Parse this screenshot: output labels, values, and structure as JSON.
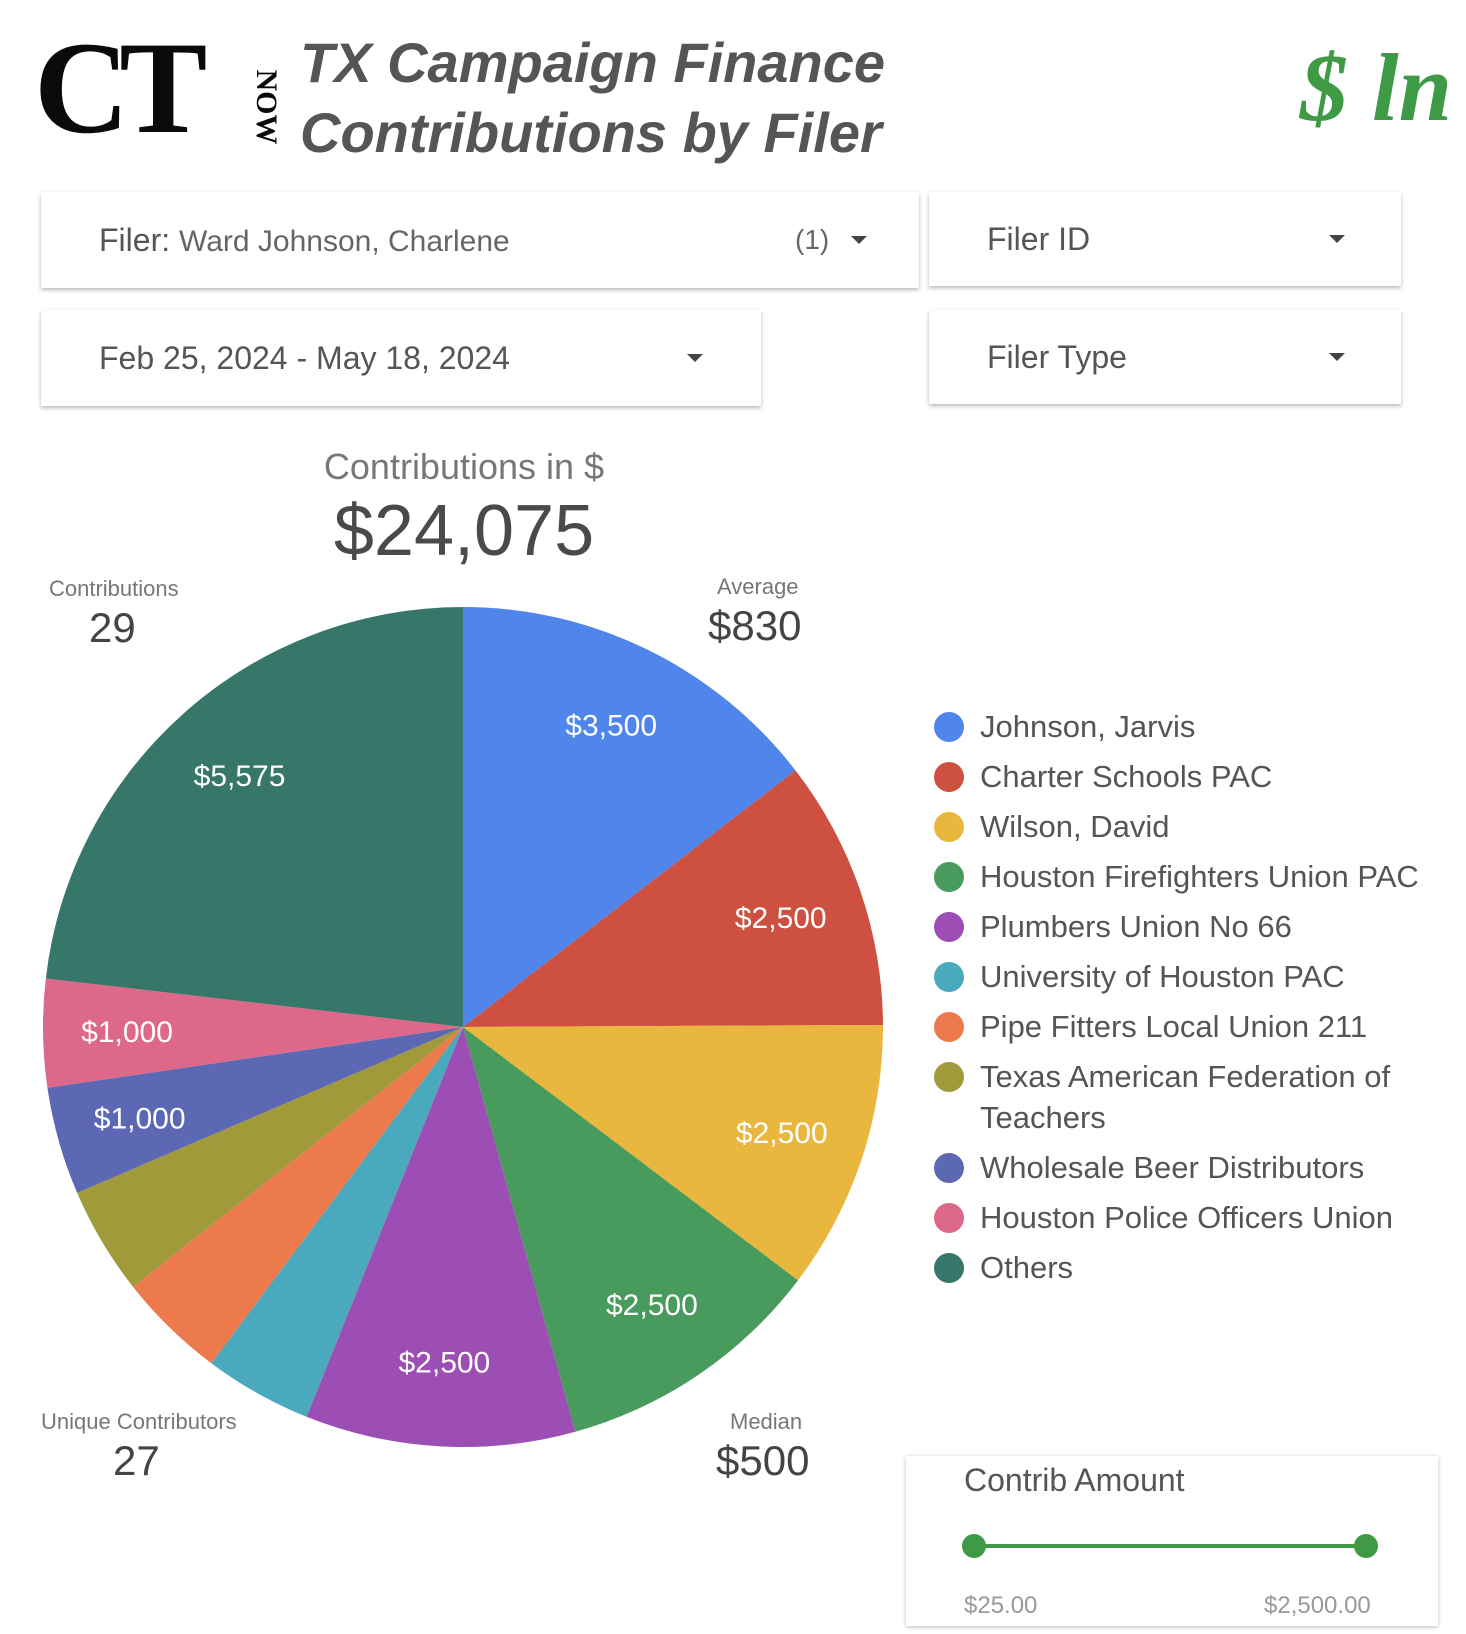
{
  "header": {
    "logo_text": "CT",
    "logo_sub": "NOW",
    "title": "TX Campaign Finance Contributions by Filer",
    "brand_mark": "$ ln"
  },
  "filters": {
    "filer": {
      "label": "Filer",
      "value": "Ward Johnson, Charlene",
      "count": "(1)"
    },
    "filer_id": {
      "label": "Filer ID"
    },
    "date_range": {
      "label": "Feb 25, 2024 - May 18, 2024"
    },
    "filer_type": {
      "label": "Filer Type"
    }
  },
  "scorecards": {
    "total": {
      "label": "Contributions in $",
      "value": "$24,075"
    },
    "contributions": {
      "label": "Contributions",
      "value": "29"
    },
    "average": {
      "label": "Average",
      "value": "$830"
    },
    "unique": {
      "label": "Unique Contributors",
      "value": "27"
    },
    "median": {
      "label": "Median",
      "value": "$500"
    }
  },
  "chart_data": {
    "type": "pie",
    "slices": [
      {
        "name": "Johnson, Jarvis",
        "value": 3500,
        "label": "$3,500",
        "color": "#5085ec"
      },
      {
        "name": "Charter Schools PAC",
        "value": 2500,
        "label": "$2,500",
        "color": "#cd5040"
      },
      {
        "name": "Wilson, David",
        "value": 2500,
        "label": "$2,500",
        "color": "#e9b73e"
      },
      {
        "name": "Houston Firefighters Union PAC",
        "value": 2500,
        "label": "$2,500",
        "color": "#489b5c"
      },
      {
        "name": "Plumbers Union No 66",
        "value": 2500,
        "label": "$2,500",
        "color": "#9c4eb5"
      },
      {
        "name": "University of Houston PAC",
        "value": 1000,
        "label": "",
        "color": "#4aa9bd"
      },
      {
        "name": "Pipe Fitters Local Union 211",
        "value": 1000,
        "label": "",
        "color": "#ec7a4d"
      },
      {
        "name": "Texas American Federation of Teachers",
        "value": 1000,
        "label": "",
        "color": "#a09a3a"
      },
      {
        "name": "Wholesale Beer Distributors",
        "value": 1000,
        "label": "$1,000",
        "color": "#5d68b5"
      },
      {
        "name": "Houston Police Officers Union",
        "value": 1000,
        "label": "$1,000",
        "color": "#dd6889"
      },
      {
        "name": "Others",
        "value": 5575,
        "label": "$5,575",
        "color": "#37776a"
      }
    ],
    "legend_placement": "right"
  },
  "slider": {
    "title": "Contrib Amount",
    "min_label": "$25.00",
    "max_label": "$2,500.00",
    "min_value": 25,
    "max_value": 2500,
    "low_fraction": 0,
    "high_fraction": 1,
    "accent": "#3f9a45"
  }
}
